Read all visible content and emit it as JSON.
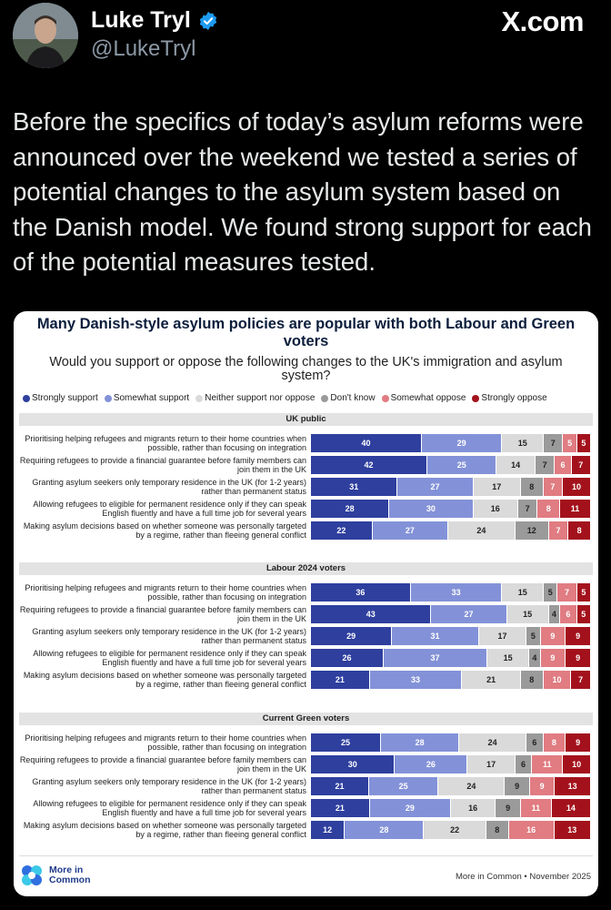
{
  "tweet": {
    "author_name": "Luke Tryl",
    "handle": "@LukeTryl",
    "site_logo": "X.com",
    "text": "Before the specifics of today’s asylum reforms were announced over the weekend we tested a series of potential changes to the asylum system based on the Danish model. We found strong support for each of the potential measures tested."
  },
  "icons": {
    "verified": "verified-badge-icon",
    "logo": "more-in-common-logo-icon"
  },
  "colors": {
    "strongly_support": "#2e3f9e",
    "somewhat_support": "#8392d8",
    "neither": "#dadada",
    "dont_know": "#9a9a9a",
    "somewhat_oppose": "#e07c82",
    "strongly_oppose": "#a3121c",
    "verified": "#1d9bf0"
  },
  "chart_data": {
    "type": "bar",
    "title": "Many Danish-style asylum policies are popular with both Labour and Green voters",
    "subtitle": "Would you support or oppose the following changes to the UK's immigration and asylum system?",
    "legend": [
      "Strongly support",
      "Somewhat support",
      "Neither support nor oppose",
      "Don't know",
      "Somewhat oppose",
      "Strongly oppose"
    ],
    "categories": [
      "Prioritising helping refugees and migrants return to their home countries when possible, rather than focusing on integration",
      "Requiring refugees to provide a financial guarantee before family members can join them in the UK",
      "Granting asylum seekers only temporary residence in the UK (for 1-2 years) rather than permanent status",
      "Allowing refugees to eligible for permanent residence only if they can speak English fluently and have a full time job for several years",
      "Making asylum decisions based on whether someone was personally targeted by a regime, rather than fleeing general conflict"
    ],
    "panels": [
      {
        "name": "UK public",
        "rows": [
          [
            40,
            29,
            15,
            7,
            5,
            5
          ],
          [
            42,
            25,
            14,
            7,
            6,
            7
          ],
          [
            31,
            27,
            17,
            8,
            7,
            10
          ],
          [
            28,
            30,
            16,
            7,
            8,
            11
          ],
          [
            22,
            27,
            24,
            12,
            7,
            8
          ]
        ]
      },
      {
        "name": "Labour 2024 voters",
        "rows": [
          [
            36,
            33,
            15,
            5,
            7,
            5
          ],
          [
            43,
            27,
            15,
            4,
            6,
            5
          ],
          [
            29,
            31,
            17,
            5,
            9,
            9
          ],
          [
            26,
            37,
            15,
            4,
            9,
            9
          ],
          [
            21,
            33,
            21,
            8,
            10,
            7
          ]
        ]
      },
      {
        "name": "Current Green voters",
        "rows": [
          [
            25,
            28,
            24,
            6,
            8,
            9
          ],
          [
            30,
            26,
            17,
            6,
            11,
            10
          ],
          [
            21,
            25,
            24,
            9,
            9,
            13
          ],
          [
            21,
            29,
            16,
            9,
            11,
            14
          ],
          [
            12,
            28,
            22,
            8,
            16,
            13
          ]
        ]
      }
    ],
    "source": "More in Common • November 2025",
    "logo_text": [
      "More in",
      "Common"
    ]
  }
}
